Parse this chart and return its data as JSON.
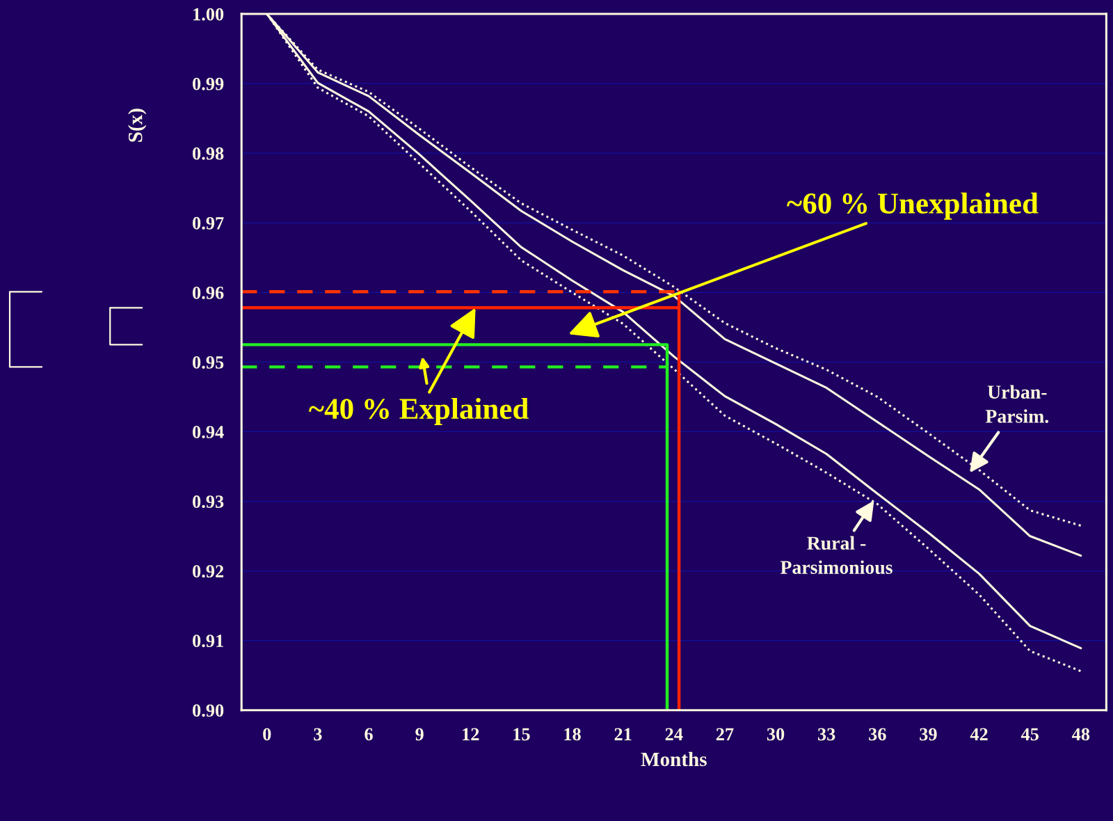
{
  "chart_data": {
    "type": "line",
    "xlabel": "Months",
    "ylabel": "S(x)",
    "xlim": [
      -1.5,
      49.5
    ],
    "xticks": [
      0,
      3,
      6,
      9,
      12,
      15,
      18,
      21,
      24,
      27,
      30,
      33,
      36,
      39,
      42,
      45,
      48
    ],
    "ylim": [
      0.9,
      1.0
    ],
    "yticks": [
      {
        "value": 0.9,
        "label": "0.90"
      },
      0.91,
      0.92,
      0.93,
      0.94,
      0.95,
      0.96,
      0.97,
      0.98,
      0.99,
      {
        "value": 1.0,
        "label": "1.00"
      }
    ],
    "grid": "y",
    "legend": false,
    "marker": "none",
    "series": [
      {
        "color": "#fffbe0",
        "line_style": "solid",
        "x": [
          0,
          3,
          6,
          9,
          12,
          15,
          18,
          21,
          24,
          27,
          30,
          33,
          36,
          39,
          42,
          45,
          48
        ],
        "values": [
          1.0,
          0.9916,
          0.9882,
          0.9826,
          0.9772,
          0.9717,
          0.9673,
          0.9632,
          0.9595,
          0.9533,
          0.9498,
          0.9463,
          0.9414,
          0.9365,
          0.9317,
          0.925,
          0.9222
        ]
      },
      {
        "color": "#fffbe0",
        "line_style": "dotted",
        "x": [
          0,
          3,
          6,
          9,
          12,
          15,
          18,
          21,
          24,
          27,
          30,
          33,
          36,
          39,
          42,
          45,
          48
        ],
        "values": [
          1.0,
          0.992,
          0.9888,
          0.9835,
          0.978,
          0.9728,
          0.969,
          0.9653,
          0.9608,
          0.9556,
          0.952,
          0.9489,
          0.945,
          0.9398,
          0.9345,
          0.9287,
          0.9265
        ]
      },
      {
        "color": "#fffbe0",
        "line_style": "solid",
        "x": [
          0,
          3,
          6,
          9,
          12,
          15,
          18,
          21,
          24,
          27,
          30,
          33,
          36,
          39,
          42,
          45,
          48
        ],
        "values": [
          1.0,
          0.9901,
          0.986,
          0.9798,
          0.9732,
          0.9665,
          0.9617,
          0.9572,
          0.9508,
          0.9451,
          0.9411,
          0.9368,
          0.9311,
          0.9255,
          0.9196,
          0.9121,
          0.9089
        ]
      },
      {
        "color": "#fffbe0",
        "line_style": "dotted",
        "x": [
          0,
          3,
          6,
          9,
          12,
          15,
          18,
          21,
          24,
          27,
          30,
          33,
          36,
          39,
          42,
          45,
          48
        ],
        "values": [
          1.0,
          0.9894,
          0.9853,
          0.9785,
          0.9717,
          0.9646,
          0.96,
          0.9555,
          0.949,
          0.9423,
          0.9383,
          0.9341,
          0.9296,
          0.9232,
          0.9166,
          0.9085,
          0.9056
        ]
      },
      {
        "color": "#ff3300",
        "line_style": "dashed",
        "x": [
          -1.5,
          24.3
        ],
        "values": [
          0.9601,
          0.9601
        ]
      },
      {
        "color": "#ff2200",
        "line_style": "solid",
        "x": [
          -1.5,
          24.3,
          24.3,
          24.3
        ],
        "values": [
          0.9578,
          0.9578,
          0.9601,
          0.9
        ]
      },
      {
        "color": "#22ee22",
        "line_style": "solid",
        "x": [
          -1.5,
          23.6,
          23.6
        ],
        "values": [
          0.9525,
          0.9525,
          0.9
        ]
      },
      {
        "color": "#22ee22",
        "line_style": "dashed",
        "x": [
          -1.5,
          23.6
        ],
        "values": [
          0.9493,
          0.9493
        ]
      }
    ],
    "annotations": [
      "~60 % Unexplained",
      {
        "text": "~40 % Explained",
        "x": 12.3,
        "y": 0.9578
      },
      "Urban-\nParsim.",
      {
        "text": "Rural -\nParsimonious",
        "x": 35.8,
        "y": 0.9301
      }
    ]
  }
}
